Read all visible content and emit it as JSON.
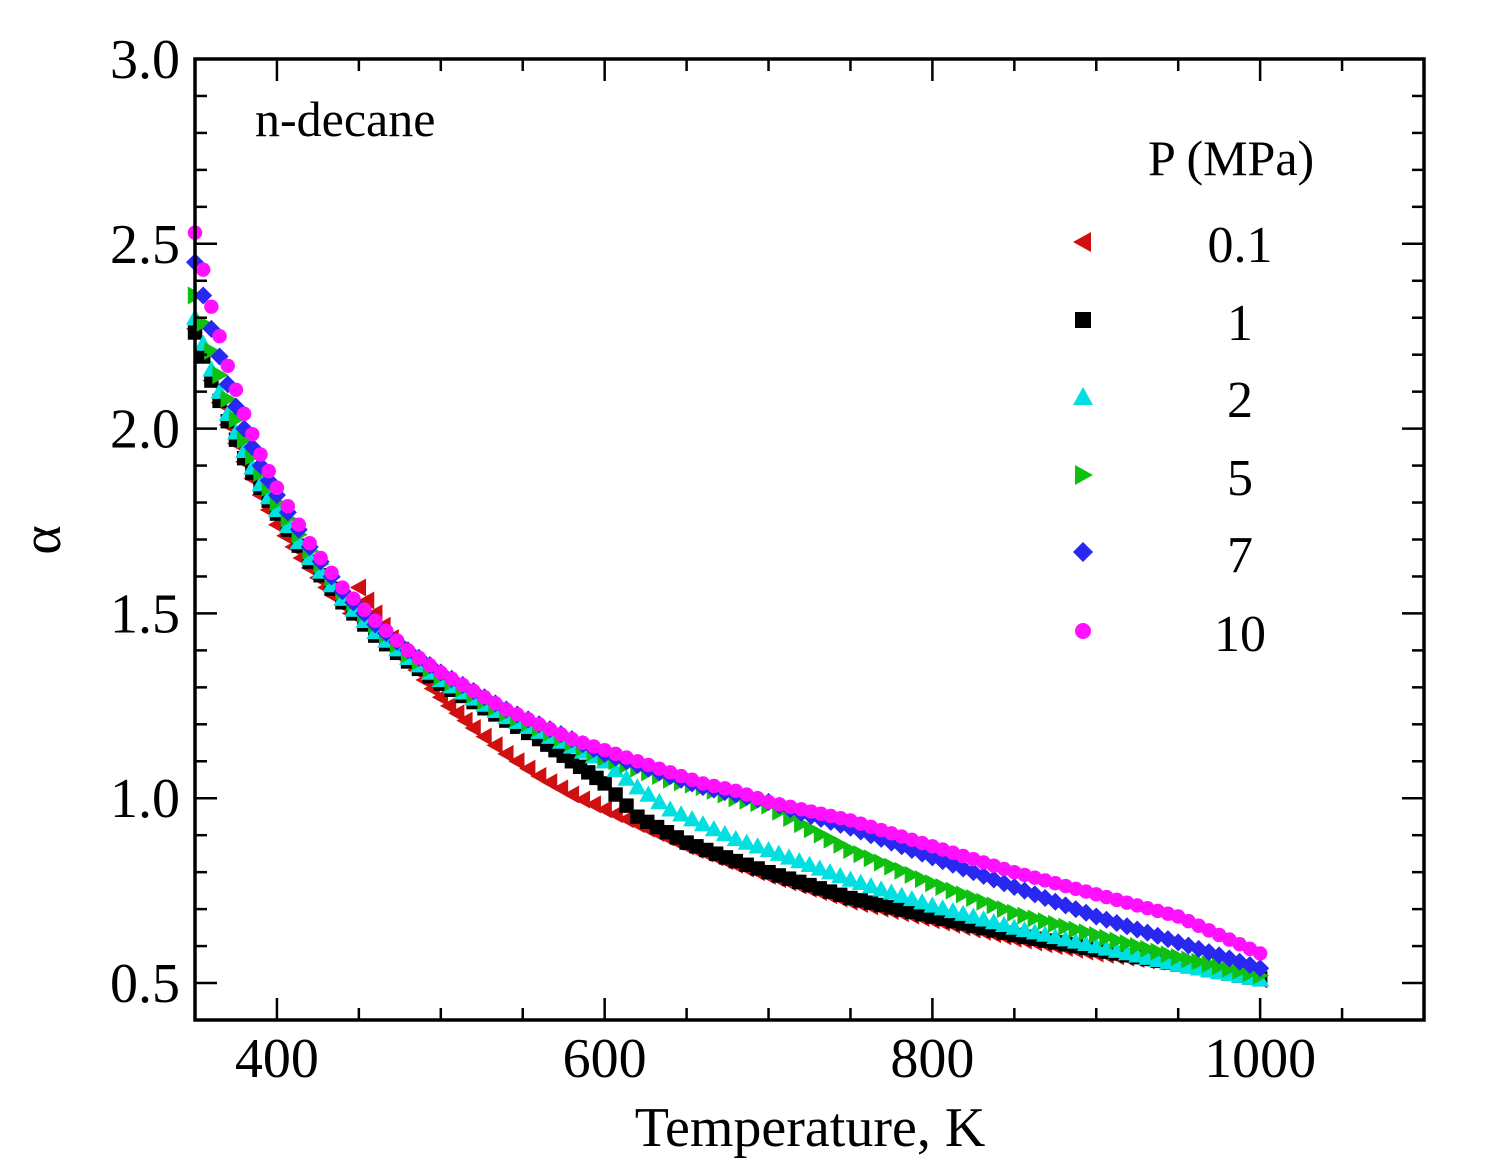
{
  "chart_data": {
    "type": "scatter",
    "annotation": "n-decane",
    "xlabel": "Temperature, K",
    "ylabel": "α",
    "xlim": [
      350,
      1100
    ],
    "ylim": [
      0.4,
      3.0
    ],
    "xticks": [
      400,
      600,
      800,
      1000
    ],
    "yticks": [
      0.5,
      1.0,
      1.5,
      2.0,
      2.5,
      3.0
    ],
    "ytick_labels": [
      "0.5",
      "1.0",
      "1.5",
      "2.0",
      "2.5",
      "3.0"
    ],
    "xtick_labels": [
      "400",
      "600",
      "800",
      "1000"
    ],
    "grid": false,
    "legend": {
      "title": "P (MPa)",
      "placement": "top-right"
    },
    "series": [
      {
        "name": "0.1",
        "marker": "triangle-left",
        "color": "#d01010",
        "x": [
          350,
          360,
          370,
          380,
          390,
          400,
          415,
          430,
          445,
          450,
          460,
          475,
          490,
          505,
          520,
          540,
          560,
          580,
          600,
          620,
          650,
          680,
          700,
          750,
          800,
          850,
          900,
          950,
          1000
        ],
        "y": [
          2.27,
          2.13,
          2.01,
          1.91,
          1.82,
          1.74,
          1.65,
          1.57,
          1.5,
          1.57,
          1.5,
          1.4,
          1.32,
          1.25,
          1.19,
          1.12,
          1.06,
          1.01,
          0.97,
          0.93,
          0.87,
          0.82,
          0.79,
          0.72,
          0.67,
          0.62,
          0.58,
          0.55,
          0.51
        ]
      },
      {
        "name": "1",
        "marker": "square",
        "color": "#000000",
        "x": [
          350,
          360,
          370,
          380,
          390,
          400,
          420,
          440,
          460,
          480,
          500,
          520,
          540,
          560,
          570,
          580,
          590,
          600,
          620,
          650,
          680,
          700,
          750,
          800,
          850,
          900,
          950,
          1000
        ],
        "y": [
          2.26,
          2.13,
          2.02,
          1.92,
          1.84,
          1.77,
          1.64,
          1.53,
          1.44,
          1.37,
          1.31,
          1.26,
          1.21,
          1.16,
          1.13,
          1.1,
          1.07,
          1.04,
          0.95,
          0.88,
          0.83,
          0.8,
          0.73,
          0.68,
          0.63,
          0.59,
          0.55,
          0.51
        ]
      },
      {
        "name": "2",
        "marker": "triangle-up",
        "color": "#00e0e0",
        "x": [
          350,
          360,
          370,
          380,
          390,
          400,
          420,
          440,
          460,
          480,
          500,
          520,
          540,
          560,
          580,
          600,
          620,
          640,
          660,
          680,
          700,
          750,
          800,
          850,
          900,
          950,
          1000
        ],
        "y": [
          2.3,
          2.16,
          2.04,
          1.94,
          1.85,
          1.78,
          1.65,
          1.54,
          1.45,
          1.38,
          1.32,
          1.27,
          1.22,
          1.18,
          1.14,
          1.1,
          1.03,
          0.97,
          0.93,
          0.89,
          0.86,
          0.78,
          0.71,
          0.65,
          0.6,
          0.55,
          0.51
        ]
      },
      {
        "name": "5",
        "marker": "triangle-right",
        "color": "#10c010",
        "x": [
          350,
          360,
          370,
          380,
          390,
          400,
          420,
          440,
          460,
          480,
          500,
          520,
          540,
          560,
          580,
          600,
          620,
          640,
          660,
          680,
          700,
          720,
          750,
          800,
          850,
          900,
          950,
          1000
        ],
        "y": [
          2.36,
          2.21,
          2.08,
          1.97,
          1.88,
          1.8,
          1.67,
          1.56,
          1.47,
          1.39,
          1.33,
          1.28,
          1.23,
          1.19,
          1.15,
          1.11,
          1.08,
          1.05,
          1.03,
          1.0,
          0.98,
          0.93,
          0.86,
          0.77,
          0.69,
          0.63,
          0.57,
          0.52
        ]
      },
      {
        "name": "7",
        "marker": "diamond",
        "color": "#2828f0",
        "x": [
          350,
          360,
          370,
          380,
          390,
          400,
          420,
          440,
          460,
          480,
          500,
          520,
          540,
          560,
          580,
          600,
          620,
          640,
          660,
          680,
          700,
          720,
          750,
          800,
          850,
          900,
          950,
          1000
        ],
        "y": [
          2.45,
          2.27,
          2.12,
          2.0,
          1.9,
          1.82,
          1.68,
          1.56,
          1.47,
          1.4,
          1.34,
          1.29,
          1.24,
          1.2,
          1.16,
          1.12,
          1.09,
          1.06,
          1.03,
          1.01,
          0.99,
          0.96,
          0.92,
          0.84,
          0.76,
          0.68,
          0.61,
          0.54
        ]
      },
      {
        "name": "10",
        "marker": "circle",
        "color": "#ff10ff",
        "x": [
          350,
          360,
          370,
          380,
          390,
          400,
          420,
          440,
          460,
          480,
          500,
          520,
          540,
          560,
          580,
          600,
          620,
          640,
          660,
          680,
          700,
          720,
          750,
          800,
          850,
          900,
          950,
          1000
        ],
        "y": [
          2.53,
          2.33,
          2.17,
          2.04,
          1.93,
          1.84,
          1.69,
          1.57,
          1.48,
          1.4,
          1.34,
          1.29,
          1.24,
          1.2,
          1.16,
          1.13,
          1.1,
          1.07,
          1.04,
          1.02,
          0.99,
          0.97,
          0.94,
          0.87,
          0.8,
          0.74,
          0.68,
          0.58
        ]
      }
    ]
  }
}
